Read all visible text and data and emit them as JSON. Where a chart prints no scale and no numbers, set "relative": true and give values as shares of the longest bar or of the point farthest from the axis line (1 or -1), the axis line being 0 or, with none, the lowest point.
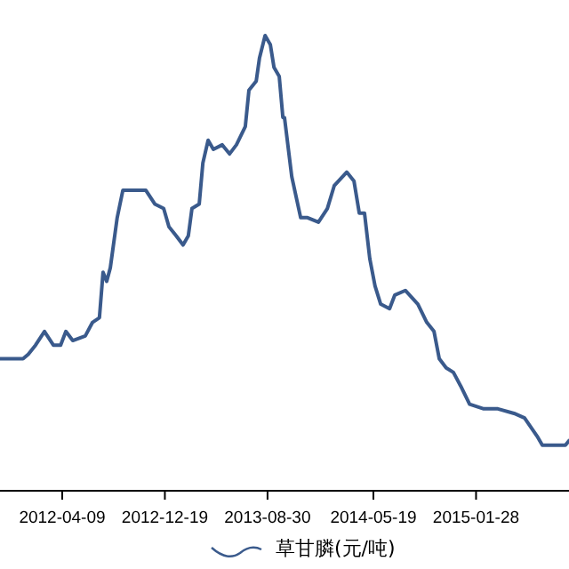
{
  "chart_data": {
    "type": "line",
    "relative": true,
    "legend": "bottom",
    "grid": false,
    "x": [
      "2011-11-07",
      "2012-01-03",
      "2012-01-16",
      "2012-02-03",
      "2012-02-25",
      "2012-03-18",
      "2012-04-05",
      "2012-04-18",
      "2012-05-05",
      "2012-06-05",
      "2012-06-23",
      "2012-07-10",
      "2012-07-19",
      "2012-07-28",
      "2012-08-06",
      "2012-08-23",
      "2012-09-06",
      "2012-11-02",
      "2012-11-24",
      "2012-12-16",
      "2012-12-29",
      "2013-01-16",
      "2013-02-02",
      "2013-02-15",
      "2013-02-24",
      "2013-03-14",
      "2013-03-23",
      "2013-04-05",
      "2013-04-18",
      "2013-05-10",
      "2013-05-28",
      "2013-06-14",
      "2013-07-06",
      "2013-07-15",
      "2013-08-02",
      "2013-08-10",
      "2013-08-24",
      "2013-09-06",
      "2013-09-15",
      "2013-09-28",
      "2013-10-07",
      "2013-10-11",
      "2013-10-29",
      "2013-11-20",
      "2013-12-07",
      "2014-01-03",
      "2014-01-25",
      "2014-02-11",
      "2014-03-14",
      "2014-04-01",
      "2014-04-14",
      "2014-04-27",
      "2014-05-10",
      "2014-05-23",
      "2014-06-06",
      "2014-06-28",
      "2014-07-11",
      "2014-08-06",
      "2014-09-06",
      "2014-09-28",
      "2014-10-16",
      "2014-10-29",
      "2014-11-15",
      "2014-12-03",
      "2014-12-21",
      "2015-01-12",
      "2015-02-16",
      "2015-03-23",
      "2015-05-02",
      "2015-05-28",
      "2015-06-28",
      "2015-07-11",
      "2015-09-06",
      "2015-09-15"
    ],
    "xlim": [
      "2011-11-07",
      "2015-09-15"
    ],
    "xticks": [
      {
        "value": "2012-04-09",
        "label": "2012-04-09"
      },
      {
        "value": "2012-12-19",
        "label": "2012-12-19"
      },
      {
        "value": "2013-08-30",
        "label": "2013-08-30"
      },
      {
        "value": "2014-05-19",
        "label": "2014-05-19"
      },
      {
        "value": "2015-01-28",
        "label": "2015-01-28"
      }
    ],
    "series": [
      {
        "name": "草甘膦(元/吨)",
        "color": "#3a5a8c",
        "values": [
          0.29,
          0.29,
          0.3,
          0.32,
          0.35,
          0.32,
          0.32,
          0.35,
          0.33,
          0.34,
          0.37,
          0.38,
          0.48,
          0.46,
          0.49,
          0.6,
          0.66,
          0.66,
          0.63,
          0.62,
          0.58,
          0.56,
          0.54,
          0.56,
          0.62,
          0.63,
          0.72,
          0.77,
          0.75,
          0.76,
          0.74,
          0.76,
          0.8,
          0.88,
          0.9,
          0.95,
          1,
          0.98,
          0.93,
          0.91,
          0.82,
          0.82,
          0.69,
          0.6,
          0.6,
          0.59,
          0.62,
          0.67,
          0.7,
          0.68,
          0.61,
          0.61,
          0.51,
          0.45,
          0.41,
          0.4,
          0.43,
          0.44,
          0.41,
          0.37,
          0.35,
          0.29,
          0.27,
          0.26,
          0.23,
          0.19,
          0.18,
          0.18,
          0.17,
          0.16,
          0.12,
          0.1,
          0.1,
          0.11
        ]
      }
    ]
  }
}
